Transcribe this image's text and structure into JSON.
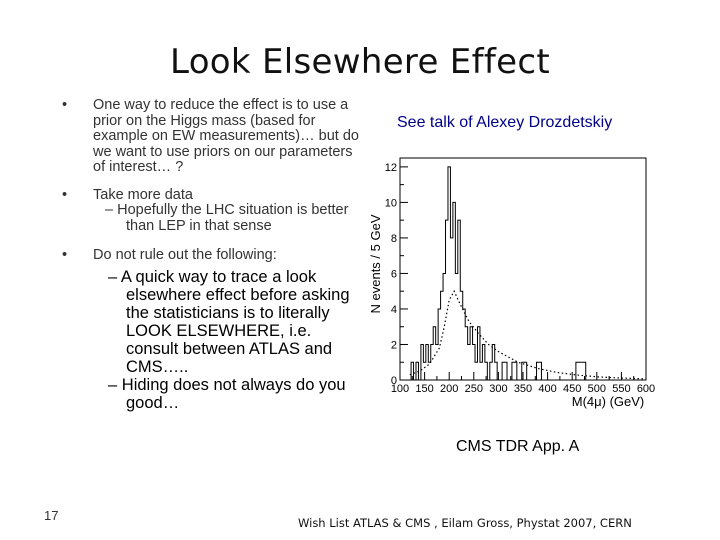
{
  "title": "Look Elsewhere Effect",
  "bullets": [
    {
      "marker": "•",
      "text": "One way to reduce the effect is to use a prior on the Higgs mass (based for example on EW measurements)… but do we want to use priors on our parameters of interest… ?"
    },
    {
      "marker": "•",
      "text": "Take more data",
      "sub": {
        "marker": "–",
        "text": "Hopefully the LHC situation is better than LEP in that sense"
      }
    },
    {
      "marker": "•",
      "text": "Do not rule out the following:",
      "subs": [
        {
          "marker": "–",
          "text": "A quick way to trace a look elsewhere effect before asking the statisticians is to literally LOOK ELSEWHERE, i.e. consult between ATLAS and CMS….."
        },
        {
          "marker": "–",
          "text": "Hiding does not always do you good…"
        }
      ]
    }
  ],
  "talk_note": "See talk of Alexey Drozdetskiy",
  "plot_caption": "CMS TDR App. A",
  "page_number": "17",
  "footer": "Wish List ATLAS & CMS , Eilam Gross, Phystat 2007, CERN",
  "chart_data": {
    "type": "line",
    "xlabel": "M(4μ) (GeV)",
    "ylabel": "N events / 5 GeV",
    "x_ticks": [
      "100",
      "150",
      "200",
      "250",
      "300",
      "350",
      "400",
      "450",
      "500",
      "550",
      "600"
    ],
    "y_ticks": [
      "0",
      "2",
      "4",
      "6",
      "8",
      "10",
      "12"
    ],
    "xlim": [
      100,
      600
    ],
    "ylim": [
      0,
      12.5
    ],
    "series": [
      {
        "style": "histogram",
        "x": [
          105,
          110,
          115,
          120,
          125,
          130,
          135,
          140,
          145,
          150,
          155,
          160,
          165,
          170,
          175,
          180,
          185,
          190,
          195,
          200,
          205,
          210,
          215,
          220,
          225,
          230,
          235,
          240,
          245,
          250,
          255,
          260,
          265,
          270,
          275,
          280,
          285,
          290,
          295,
          300,
          310,
          320,
          330,
          340,
          350,
          360,
          370,
          380,
          390,
          400,
          420,
          440,
          460,
          480,
          500,
          520,
          540,
          560,
          580,
          600
        ],
        "y": [
          0,
          0,
          0,
          0,
          1,
          0,
          1,
          0,
          2,
          1,
          2,
          1,
          2,
          3,
          2,
          4,
          5,
          6,
          9,
          12,
          8,
          10,
          6,
          9,
          5,
          4,
          3,
          2,
          3,
          2,
          1,
          3,
          1,
          2,
          1,
          0,
          1,
          2,
          1,
          0,
          1,
          0,
          1,
          0,
          1,
          0,
          0,
          1,
          0,
          0,
          0,
          0,
          1,
          0,
          0,
          0,
          0,
          0,
          0,
          0
        ]
      },
      {
        "style": "dotted-fit",
        "x": [
          120,
          140,
          160,
          180,
          190,
          200,
          210,
          220,
          240,
          260,
          280,
          300,
          340,
          380,
          420,
          460,
          500,
          540,
          580,
          600
        ],
        "y": [
          0.3,
          0.5,
          0.9,
          1.8,
          3.0,
          4.5,
          5.0,
          4.4,
          3.3,
          2.6,
          2.0,
          1.6,
          1.0,
          0.65,
          0.42,
          0.28,
          0.18,
          0.12,
          0.08,
          0.06
        ]
      }
    ]
  }
}
